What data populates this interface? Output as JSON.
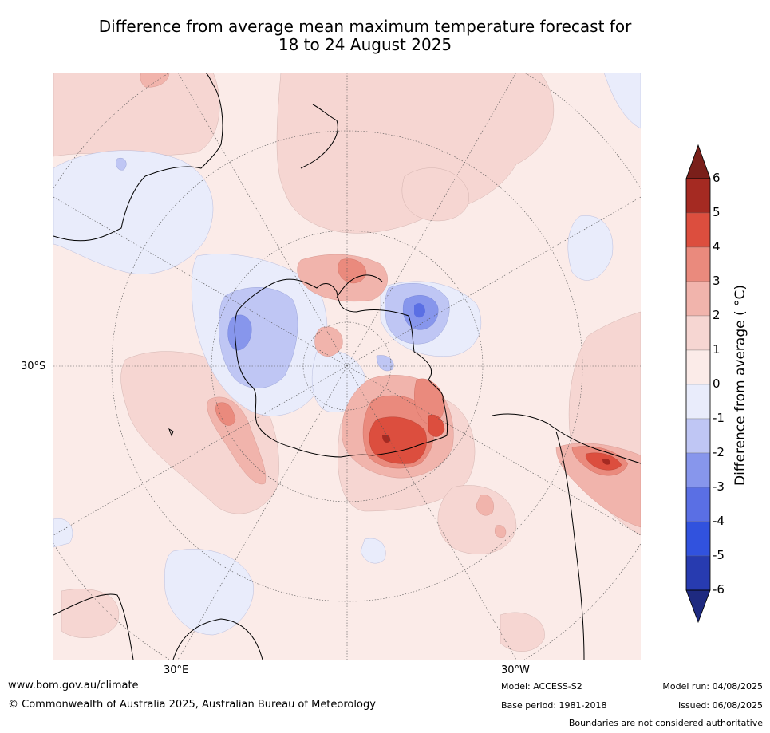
{
  "title": {
    "line1": "Difference from average mean maximum temperature forecast for",
    "line2": "18 to 24 August 2025"
  },
  "map": {
    "projection": "south-polar-stereographic",
    "labels": {
      "lat_30s": "30°S",
      "lon_30e": "30°E",
      "lon_30w": "30°W"
    },
    "colors": {
      "background_anomaly_0_1": "#fbebe8",
      "coast": "#000000",
      "graticule": "#555555"
    }
  },
  "colorbar": {
    "title": "Difference from average ( °C)",
    "ticks": [
      "6",
      "5",
      "4",
      "3",
      "2",
      "1",
      "0",
      "-1",
      "-2",
      "-3",
      "-4",
      "-5",
      "-6"
    ],
    "bins": [
      {
        "range": "5 to 6",
        "color": "#a52a22"
      },
      {
        "range": "4 to 5",
        "color": "#dc4e3e"
      },
      {
        "range": "3 to 4",
        "color": "#ea8a7d"
      },
      {
        "range": "2 to 3",
        "color": "#f1b4ac"
      },
      {
        "range": "1 to 2",
        "color": "#f6d6d2"
      },
      {
        "range": "0 to 1",
        "color": "#fbebe8"
      },
      {
        "range": "-1 to 0",
        "color": "#e9ecfb"
      },
      {
        "range": "-2 to -1",
        "color": "#bfc6f4"
      },
      {
        "range": "-3 to -2",
        "color": "#8796ec"
      },
      {
        "range": "-4 to -3",
        "color": "#5a6fe4"
      },
      {
        "range": "-5 to -4",
        "color": "#3152de"
      },
      {
        "range": "-6 to -5",
        "color": "#273bb0"
      }
    ],
    "extend_high_color": "#7a1f1a",
    "extend_low_color": "#1e2a80"
  },
  "footer": {
    "website": "www.bom.gov.au/climate",
    "copyright": "© Commonwealth of Australia 2025, Australian Bureau of Meteorology",
    "model": "Model: ACCESS-S2",
    "base_period": "Base period: 1981-2018",
    "model_run": "Model run: 04/08/2025",
    "issued": "Issued: 06/08/2025",
    "disclaimer": "Boundaries are not considered authoritative"
  }
}
